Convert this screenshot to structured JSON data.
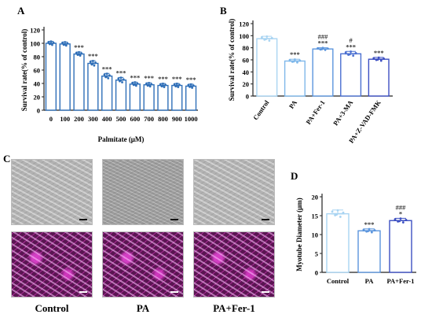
{
  "panels": {
    "A": "A",
    "B": "B",
    "C": "C",
    "D": "D"
  },
  "chart_data": [
    {
      "id": "A",
      "type": "bar",
      "ylabel": "Survival rate(% of control)",
      "xlabel": "Palmitate (μM)",
      "ylim": [
        0,
        120
      ],
      "yticks": [
        0,
        20,
        40,
        60,
        80,
        100,
        120
      ],
      "categories": [
        "0",
        "100",
        "200",
        "300",
        "400",
        "500",
        "600",
        "700",
        "800",
        "900",
        "1000"
      ],
      "values": [
        100,
        99,
        84,
        70,
        51,
        45,
        39,
        38,
        37,
        37,
        36
      ],
      "errors": [
        3,
        3,
        3,
        4,
        4,
        4,
        3,
        3,
        3,
        3,
        3
      ],
      "annotations": [
        "",
        "",
        "***",
        "***",
        "***",
        "***",
        "***",
        "***",
        "***",
        "***",
        "***"
      ]
    },
    {
      "id": "B",
      "type": "bar",
      "ylabel": "Survival rate(% of control)",
      "ylim": [
        0,
        120
      ],
      "yticks": [
        0,
        20,
        40,
        60,
        80,
        100,
        120
      ],
      "categories": [
        "Control",
        "PA",
        "PA+Fer-1",
        "PA+3-MA",
        "PA+Z-VAD-FMK"
      ],
      "values": [
        95,
        58,
        78,
        70,
        61
      ],
      "errors": [
        4,
        3,
        2,
        4,
        3
      ],
      "annotations": [
        "",
        "***",
        "###\n***",
        "#\n***",
        "***"
      ],
      "colors": [
        "#a9d4f2",
        "#7fb8ea",
        "#5b95dd",
        "#4a6fd0",
        "#3c4fc2"
      ]
    },
    {
      "id": "D",
      "type": "bar",
      "ylabel": "Myotube Diameter (μm)",
      "ylim": [
        0,
        20
      ],
      "yticks": [
        0,
        5,
        10,
        15,
        20
      ],
      "categories": [
        "Control",
        "PA",
        "PA+Fer-1"
      ],
      "values": [
        15.5,
        11.0,
        13.7
      ],
      "errors": [
        1.0,
        0.5,
        0.6
      ],
      "annotations": [
        "",
        "***",
        "###\n*"
      ],
      "colors": [
        "#a9d4f2",
        "#5b95dd",
        "#3c4fc2"
      ]
    }
  ],
  "images": {
    "labels": [
      "Control",
      "PA",
      "PA+Fer-1"
    ]
  }
}
